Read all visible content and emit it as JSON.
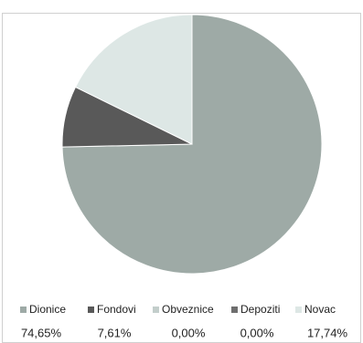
{
  "chart_data": {
    "type": "pie",
    "categories": [
      "Dionice",
      "Fondovi",
      "Obveznice",
      "Depoziti",
      "Novac"
    ],
    "values": [
      74.65,
      7.61,
      0.0,
      0.0,
      17.74
    ],
    "value_labels": [
      "74,65%",
      "7,61%",
      "0,00%",
      "0,00%",
      "17,74%"
    ],
    "colors": [
      "#9eaaa6",
      "#595959",
      "#c3cecb",
      "#6e6e6e",
      "#dde7e5"
    ],
    "legend": "bottom"
  }
}
